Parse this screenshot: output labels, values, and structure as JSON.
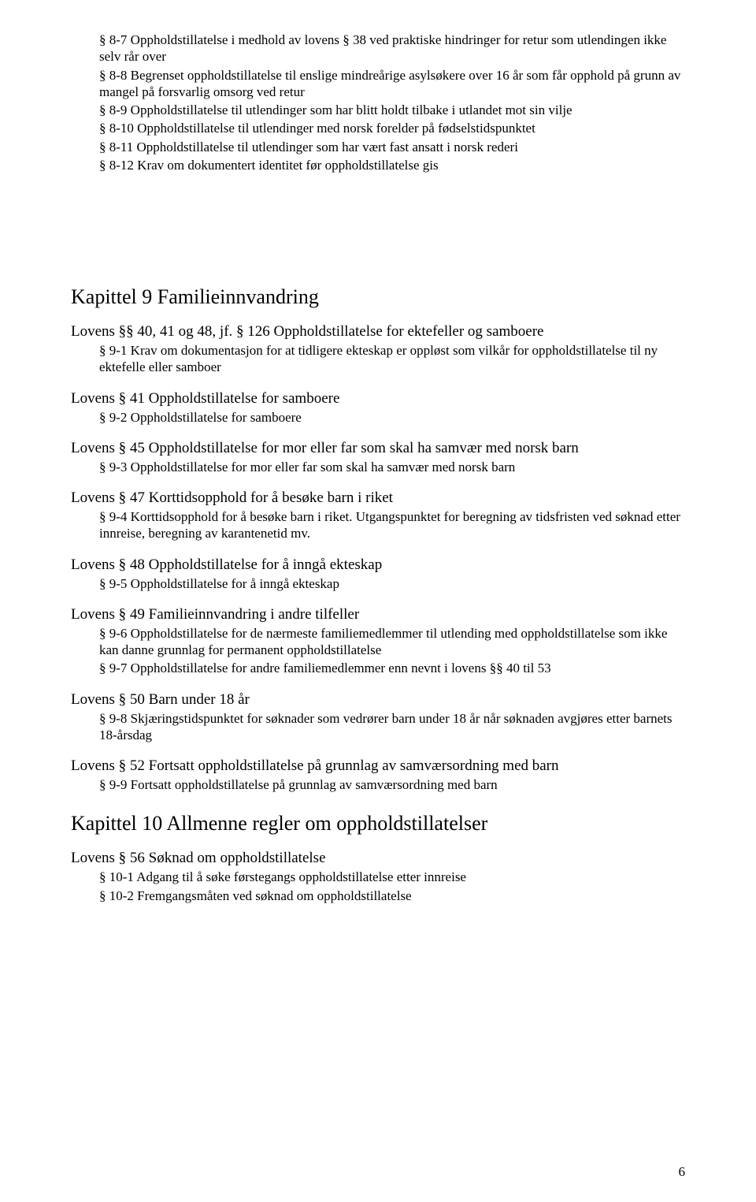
{
  "top_items": [
    "§ 8-7 Oppholdstillatelse  i medhold av lovens § 38 ved praktiske hindringer for retur som utlendingen ikke selv rår over",
    "§ 8-8 Begrenset oppholdstillatelse til enslige mindreårige asylsøkere over 16 år som får opphold på grunn av mangel på forsvarlig omsorg ved retur",
    "§ 8-9 Oppholdstillatelse til utlendinger som har blitt holdt tilbake i utlandet mot sin vilje",
    "§ 8-10 Oppholdstillatelse til utlendinger med norsk forelder på fødselstidspunktet",
    "§ 8-11 Oppholdstillatelse til utlendinger som har vært fast ansatt i norsk rederi",
    "§ 8-12 Krav om dokumentert identitet før oppholdstillatelse gis"
  ],
  "chapter9": {
    "title": "Kapittel 9 Familieinnvandring",
    "sections": [
      {
        "heading": "Lovens §§ 40, 41 og 48, jf. § 126 Oppholdstillatelse for ektefeller og samboere",
        "items": [
          "§ 9-1 Krav om dokumentasjon for at tidligere ekteskap er oppløst som vilkår for oppholdstillatelse til ny ektefelle eller samboer"
        ]
      },
      {
        "heading": "Lovens § 41 Oppholdstillatelse for samboere",
        "items": [
          "§ 9-2 Oppholdstillatelse for samboere"
        ]
      },
      {
        "heading": "Lovens § 45 Oppholdstillatelse for mor eller far som skal ha samvær med norsk barn",
        "items": [
          "§ 9-3 Oppholdstillatelse for mor eller far som skal ha samvær med norsk barn"
        ]
      },
      {
        "heading": "Lovens § 47 Korttidsopphold for å besøke barn i riket",
        "items": [
          "§ 9-4 Korttidsopphold for å besøke barn i riket. Utgangspunktet for beregning av tidsfristen ved søknad etter innreise, beregning av karantenetid mv."
        ]
      },
      {
        "heading": "Lovens § 48 Oppholdstillatelse for å inngå ekteskap",
        "items": [
          "§ 9-5 Oppholdstillatelse for å inngå ekteskap"
        ]
      },
      {
        "heading": "Lovens § 49 Familieinnvandring i andre tilfeller",
        "items": [
          "§ 9-6 Oppholdstillatelse for de nærmeste familiemedlemmer til utlending med oppholdstillatelse som ikke kan danne grunnlag for permanent oppholdstillatelse",
          "§ 9-7 Oppholdstillatelse for andre familiemedlemmer enn nevnt i lovens §§ 40 til 53"
        ]
      },
      {
        "heading": "Lovens § 50 Barn under 18 år",
        "items": [
          "§ 9-8 Skjæringstidspunktet for søknader som vedrører barn under 18 år når søknaden avgjøres etter barnets 18-årsdag"
        ]
      },
      {
        "heading": "Lovens § 52 Fortsatt oppholdstillatelse på grunnlag av samværsordning med barn",
        "items": [
          "§ 9-9 Fortsatt oppholdstillatelse på grunnlag av samværsordning med barn"
        ]
      }
    ]
  },
  "chapter10": {
    "title": "Kapittel 10 Allmenne regler om oppholdstillatelser",
    "sections": [
      {
        "heading": "Lovens § 56 Søknad om oppholdstillatelse",
        "items": [
          "§ 10-1 Adgang til å søke førstegangs oppholdstillatelse etter innreise",
          "§ 10-2 Fremgangsmåten ved søknad om oppholdstillatelse"
        ]
      }
    ]
  },
  "page_number": "6"
}
